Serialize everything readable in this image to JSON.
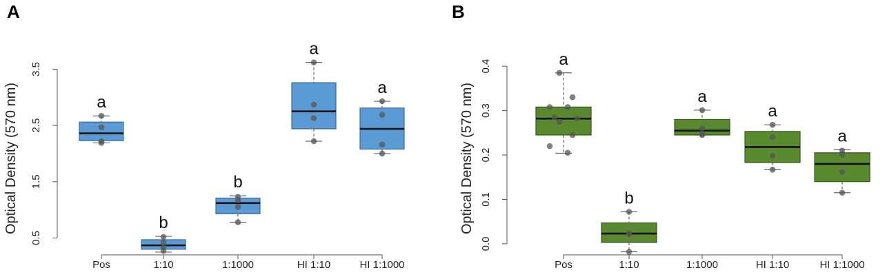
{
  "chart_data": [
    {
      "panel": "A",
      "type": "box",
      "ylabel": "Optical Density (570 nm)",
      "ylim": [
        0.2,
        3.75
      ],
      "yticks": [
        0.5,
        1.5,
        2.5,
        3.5
      ],
      "ytick_labels": [
        "0.5",
        "1.5",
        "2.5",
        "3.5"
      ],
      "categories": [
        "Pos",
        "1:10",
        "1:1000",
        "HI 1:10",
        "HI 1:1000"
      ],
      "colors": {
        "fill": "#5b9bd5",
        "stroke": "#3a6a98",
        "point": "#555555"
      },
      "boxes": [
        {
          "whisker_low": 2.19,
          "q1": 2.23,
          "median": 2.36,
          "q3": 2.56,
          "whisker_high": 2.67,
          "points": [
            2.67,
            2.47,
            2.22,
            2.19
          ],
          "letter": "a"
        },
        {
          "whisker_low": 0.25,
          "q1": 0.3,
          "median": 0.37,
          "q3": 0.47,
          "whisker_high": 0.53,
          "points": [
            0.52,
            0.42,
            0.34,
            0.27
          ],
          "letter": "b"
        },
        {
          "whisker_low": 0.78,
          "q1": 0.93,
          "median": 1.12,
          "q3": 1.21,
          "whisker_high": 1.25,
          "points": [
            1.23,
            1.17,
            1.05,
            0.78
          ],
          "letter": "b"
        },
        {
          "whisker_low": 2.22,
          "q1": 2.44,
          "median": 2.75,
          "q3": 3.26,
          "whisker_high": 3.62,
          "points": [
            3.62,
            2.87,
            2.63,
            2.22
          ],
          "letter": "a"
        },
        {
          "whisker_low": 2.0,
          "q1": 2.08,
          "median": 2.44,
          "q3": 2.81,
          "whisker_high": 2.93,
          "points": [
            2.93,
            2.69,
            2.16,
            2.0
          ],
          "letter": "a"
        }
      ]
    },
    {
      "panel": "B",
      "type": "box",
      "ylabel": "Optical Density (570 nm)",
      "ylim": [
        -0.025,
        0.425
      ],
      "yticks": [
        0.0,
        0.1,
        0.2,
        0.3,
        0.4
      ],
      "ytick_labels": [
        "0.0",
        "0.1",
        "0.2",
        "0.3",
        "0.4"
      ],
      "categories": [
        "Pos",
        "1:10",
        "1:1000",
        "HI 1:10",
        "HI 1:1000"
      ],
      "colors": {
        "fill": "#5a8a2e",
        "stroke": "#36551b",
        "point": "#555555"
      },
      "boxes": [
        {
          "whisker_low": 0.204,
          "q1": 0.245,
          "median": 0.282,
          "q3": 0.308,
          "whisker_high": 0.385,
          "points": [
            0.385,
            0.33,
            0.308,
            0.308,
            0.285,
            0.283,
            0.275,
            0.245,
            0.22,
            0.205
          ],
          "letter": "a"
        },
        {
          "whisker_low": -0.018,
          "q1": 0.003,
          "median": 0.023,
          "q3": 0.047,
          "whisker_high": 0.072,
          "points": [
            0.072,
            0.023,
            0.022,
            -0.018
          ],
          "letter": "b"
        },
        {
          "whisker_low": 0.245,
          "q1": 0.245,
          "median": 0.255,
          "q3": 0.28,
          "whisker_high": 0.301,
          "points": [
            0.301,
            0.26,
            0.247,
            0.245
          ],
          "letter": "a"
        },
        {
          "whisker_low": 0.167,
          "q1": 0.183,
          "median": 0.218,
          "q3": 0.253,
          "whisker_high": 0.268,
          "points": [
            0.268,
            0.24,
            0.198,
            0.167
          ],
          "letter": "a"
        },
        {
          "whisker_low": 0.115,
          "q1": 0.14,
          "median": 0.18,
          "q3": 0.205,
          "whisker_high": 0.212,
          "points": [
            0.21,
            0.201,
            0.162,
            0.115
          ],
          "letter": "a"
        }
      ]
    }
  ]
}
